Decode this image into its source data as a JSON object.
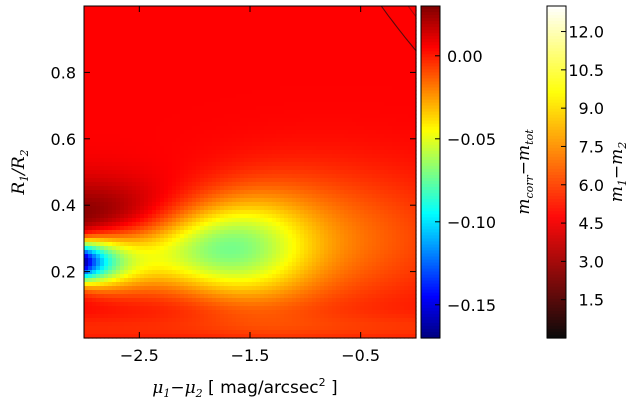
{
  "chart_data": {
    "type": "heatmap",
    "title": "",
    "xlabel": "μ1−μ2 [ mag/arcsec² ]",
    "ylabel": "R1/R2",
    "xlim": [
      -3.0,
      0.0
    ],
    "ylim": [
      0.0,
      1.0
    ],
    "x_ticks": [
      {
        "value": -2.5,
        "label": "−2.5"
      },
      {
        "value": -1.5,
        "label": "−1.5"
      },
      {
        "value": -0.5,
        "label": "−0.5"
      }
    ],
    "y_ticks": [
      {
        "value": 0.2,
        "label": "0.2"
      },
      {
        "value": 0.4,
        "label": "0.4"
      },
      {
        "value": 0.6,
        "label": "0.6"
      },
      {
        "value": 0.8,
        "label": "0.8"
      }
    ],
    "colorbar_primary": {
      "label": "m_corr − m_tot",
      "range": [
        -0.17,
        0.03
      ],
      "colormap": "jet",
      "ticks": [
        {
          "value": 0.0,
          "label": "0.00"
        },
        {
          "value": -0.05,
          "label": "−0.05"
        },
        {
          "value": -0.1,
          "label": "−0.10"
        },
        {
          "value": -0.15,
          "label": "−0.15"
        }
      ]
    },
    "colorbar_contours": {
      "label": "m1 − m2",
      "range": [
        0.0,
        13.0
      ],
      "colormap": "hot",
      "ticks": [
        {
          "value": 1.5,
          "label": "1.5"
        },
        {
          "value": 3.0,
          "label": "3.0"
        },
        {
          "value": 4.5,
          "label": "4.5"
        },
        {
          "value": 6.0,
          "label": "6.0"
        },
        {
          "value": 7.5,
          "label": "7.5"
        },
        {
          "value": 9.0,
          "label": "9.0"
        },
        {
          "value": 10.5,
          "label": "10.5"
        },
        {
          "value": 12.0,
          "label": "12.0"
        }
      ]
    },
    "contour_levels": [
      1.5,
      3.0,
      4.5,
      7.5,
      9.0,
      10.5,
      12.0
    ],
    "field_features": [
      {
        "name": "background",
        "value": 0.005
      },
      {
        "name": "minimum",
        "x": -2.85,
        "y": 0.23,
        "value": -0.16
      },
      {
        "name": "maximum",
        "x": -2.85,
        "y": 0.37,
        "value": 0.025
      }
    ]
  }
}
